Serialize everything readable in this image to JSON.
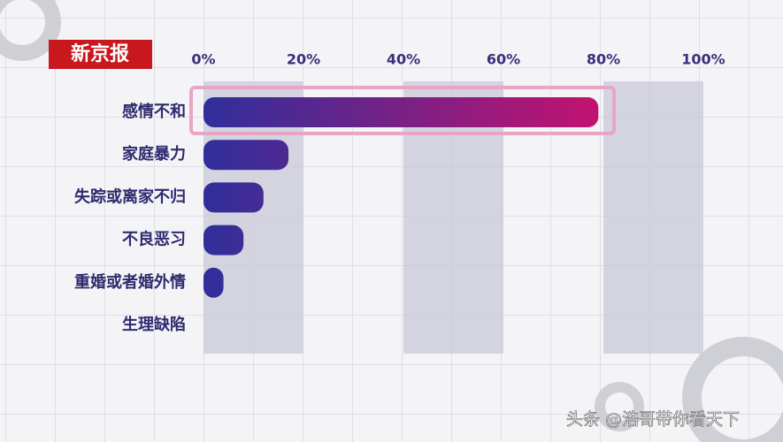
{
  "logo": "新京报",
  "watermark": "头条 @浩哥带你看天下",
  "chart_data": {
    "type": "bar",
    "orientation": "horizontal",
    "categories": [
      "感情不和",
      "家庭暴力",
      "失踪或离家不归",
      "不良恶习",
      "重婚或者婚外情",
      "生理缺陷"
    ],
    "values": [
      79,
      17,
      12,
      8,
      4,
      0
    ],
    "gradient": [
      "#2f2f9b",
      "#c4126f"
    ],
    "xlim": [
      0,
      100
    ],
    "xticks": [
      {
        "value": 0,
        "label": "0%"
      },
      {
        "value": 20,
        "label": "20%"
      },
      {
        "value": 40,
        "label": "40%"
      },
      {
        "value": 60,
        "label": "60%"
      },
      {
        "value": 80,
        "label": "80%"
      },
      {
        "value": 100,
        "label": "100%"
      }
    ]
  }
}
